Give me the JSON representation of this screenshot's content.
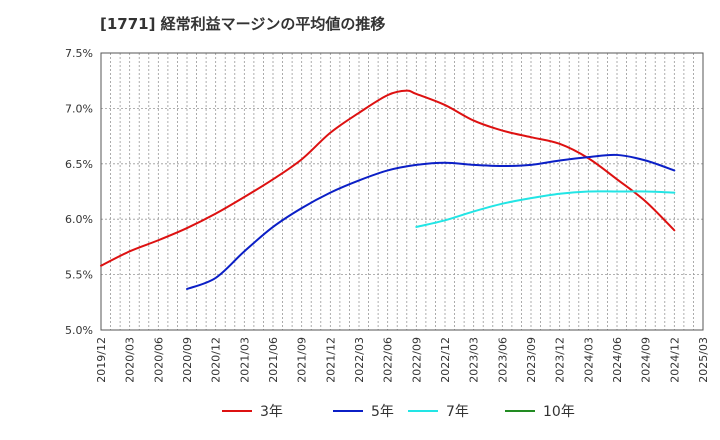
{
  "chart_data": {
    "type": "line",
    "title": "[1771]  経常利益マージンの平均値の推移",
    "y_ticks": [
      "7.5%",
      "7.0%",
      "6.5%",
      "6.0%",
      "5.5%",
      "5.0%"
    ],
    "x_ticks": [
      "2019/12",
      "2020/03",
      "2020/06",
      "2020/09",
      "2020/12",
      "2021/03",
      "2021/06",
      "2021/09",
      "2021/12",
      "2022/03",
      "2022/06",
      "2022/09",
      "2022/12",
      "2023/03",
      "2023/06",
      "2023/09",
      "2023/12",
      "2024/03",
      "2024/06",
      "2024/09",
      "2024/12",
      "2025/03"
    ],
    "ylim": [
      5.0,
      7.5
    ],
    "grid": true,
    "legend_position": "bottom",
    "series": [
      {
        "name": "3年",
        "color": "#dd1111",
        "points": [
          {
            "x": "2019/12",
            "y": 5.58
          },
          {
            "x": "2020/03",
            "y": 5.71
          },
          {
            "x": "2020/06",
            "y": 5.81
          },
          {
            "x": "2020/09",
            "y": 5.92
          },
          {
            "x": "2020/12",
            "y": 6.05
          },
          {
            "x": "2021/03",
            "y": 6.2
          },
          {
            "x": "2021/06",
            "y": 6.36
          },
          {
            "x": "2021/09",
            "y": 6.54
          },
          {
            "x": "2021/12",
            "y": 6.78
          },
          {
            "x": "2022/03",
            "y": 6.96
          },
          {
            "x": "2022/06",
            "y": 7.12
          },
          {
            "x": "2022/08",
            "y": 7.16
          },
          {
            "x": "2022/09",
            "y": 7.13
          },
          {
            "x": "2022/12",
            "y": 7.03
          },
          {
            "x": "2023/03",
            "y": 6.89
          },
          {
            "x": "2023/06",
            "y": 6.8
          },
          {
            "x": "2023/09",
            "y": 6.74
          },
          {
            "x": "2023/12",
            "y": 6.68
          },
          {
            "x": "2024/03",
            "y": 6.55
          },
          {
            "x": "2024/06",
            "y": 6.36
          },
          {
            "x": "2024/09",
            "y": 6.16
          },
          {
            "x": "2024/12",
            "y": 5.9
          }
        ]
      },
      {
        "name": "5年",
        "color": "#0b1fc6",
        "points": [
          {
            "x": "2020/09",
            "y": 5.37
          },
          {
            "x": "2020/12",
            "y": 5.47
          },
          {
            "x": "2021/03",
            "y": 5.71
          },
          {
            "x": "2021/06",
            "y": 5.93
          },
          {
            "x": "2021/09",
            "y": 6.1
          },
          {
            "x": "2021/12",
            "y": 6.24
          },
          {
            "x": "2022/03",
            "y": 6.35
          },
          {
            "x": "2022/06",
            "y": 6.44
          },
          {
            "x": "2022/09",
            "y": 6.49
          },
          {
            "x": "2022/12",
            "y": 6.51
          },
          {
            "x": "2023/03",
            "y": 6.49
          },
          {
            "x": "2023/06",
            "y": 6.48
          },
          {
            "x": "2023/09",
            "y": 6.49
          },
          {
            "x": "2023/12",
            "y": 6.53
          },
          {
            "x": "2024/03",
            "y": 6.56
          },
          {
            "x": "2024/06",
            "y": 6.58
          },
          {
            "x": "2024/09",
            "y": 6.53
          },
          {
            "x": "2024/12",
            "y": 6.44
          }
        ]
      },
      {
        "name": "7年",
        "color": "#22e5e5",
        "points": [
          {
            "x": "2022/09",
            "y": 5.93
          },
          {
            "x": "2022/12",
            "y": 5.99
          },
          {
            "x": "2023/03",
            "y": 6.07
          },
          {
            "x": "2023/06",
            "y": 6.14
          },
          {
            "x": "2023/09",
            "y": 6.19
          },
          {
            "x": "2023/12",
            "y": 6.23
          },
          {
            "x": "2024/03",
            "y": 6.25
          },
          {
            "x": "2024/06",
            "y": 6.25
          },
          {
            "x": "2024/09",
            "y": 6.25
          },
          {
            "x": "2024/12",
            "y": 6.24
          }
        ]
      },
      {
        "name": "10年",
        "color": "#228b22",
        "points": []
      }
    ]
  }
}
